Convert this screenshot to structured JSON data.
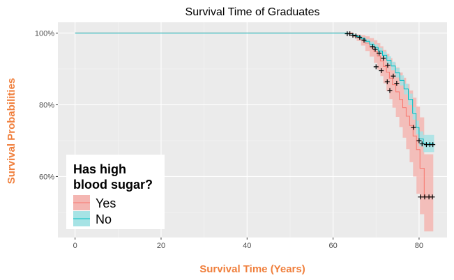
{
  "chart_data": {
    "type": "line",
    "title": "Survival Time of Graduates",
    "xlabel": "Survival Time (Years)",
    "ylabel": "Survival Probabilities",
    "xlim": [
      -4,
      86.5
    ],
    "ylim": [
      0.43,
      1.03
    ],
    "xticks": [
      0,
      20,
      40,
      60,
      80
    ],
    "xtick_labels": [
      "0",
      "20",
      "40",
      "60",
      "80"
    ],
    "yticks": [
      0.6,
      0.8,
      1.0
    ],
    "ytick_labels": [
      "60%",
      "80%",
      "100%"
    ],
    "grid": true,
    "legend": {
      "title_lines": [
        "Has high",
        "blood sugar?"
      ],
      "position": "bottom-left"
    },
    "series": [
      {
        "name": "Yes",
        "color": "#F8766D",
        "fill": "#F4B6B2",
        "steps": [
          [
            0,
            1.0
          ],
          [
            64.5,
            0.994
          ],
          [
            65.5,
            0.988
          ],
          [
            66.5,
            0.981
          ],
          [
            67.5,
            0.972
          ],
          [
            68.5,
            0.961
          ],
          [
            69.5,
            0.949
          ],
          [
            70.3,
            0.936
          ],
          [
            71,
            0.922
          ],
          [
            71.7,
            0.907
          ],
          [
            72.4,
            0.891
          ],
          [
            73.1,
            0.874
          ],
          [
            73.8,
            0.856
          ],
          [
            74.6,
            0.836
          ],
          [
            75.4,
            0.815
          ],
          [
            76.2,
            0.792
          ],
          [
            77,
            0.768
          ],
          [
            77.8,
            0.742
          ],
          [
            78.6,
            0.713
          ],
          [
            79.4,
            0.675
          ],
          [
            80.2,
            0.623
          ],
          [
            81.2,
            0.543
          ],
          [
            83.3,
            0.543
          ]
        ],
        "band_lower": [
          [
            0,
            1.0
          ],
          [
            64.5,
            0.988
          ],
          [
            65.5,
            0.978
          ],
          [
            66.5,
            0.965
          ],
          [
            67.5,
            0.95
          ],
          [
            68.5,
            0.934
          ],
          [
            69.5,
            0.917
          ],
          [
            70.3,
            0.898
          ],
          [
            71,
            0.88
          ],
          [
            71.7,
            0.86
          ],
          [
            72.4,
            0.838
          ],
          [
            73.1,
            0.816
          ],
          [
            73.8,
            0.792
          ],
          [
            74.6,
            0.766
          ],
          [
            75.4,
            0.738
          ],
          [
            76.2,
            0.708
          ],
          [
            77,
            0.676
          ],
          [
            77.8,
            0.64
          ],
          [
            78.6,
            0.6
          ],
          [
            79.4,
            0.552
          ],
          [
            80.2,
            0.495
          ],
          [
            81.2,
            0.447
          ],
          [
            83.3,
            0.447
          ]
        ],
        "band_upper": [
          [
            0,
            1.0
          ],
          [
            64.5,
            0.998
          ],
          [
            65.5,
            0.996
          ],
          [
            66.5,
            0.994
          ],
          [
            67.5,
            0.991
          ],
          [
            68.5,
            0.986
          ],
          [
            69.5,
            0.98
          ],
          [
            70.3,
            0.972
          ],
          [
            71,
            0.963
          ],
          [
            71.7,
            0.953
          ],
          [
            72.4,
            0.942
          ],
          [
            73.1,
            0.93
          ],
          [
            73.8,
            0.918
          ],
          [
            74.6,
            0.904
          ],
          [
            75.4,
            0.89
          ],
          [
            76.2,
            0.875
          ],
          [
            77,
            0.858
          ],
          [
            77.8,
            0.84
          ],
          [
            78.6,
            0.82
          ],
          [
            79.4,
            0.795
          ],
          [
            80.2,
            0.765
          ],
          [
            81.2,
            0.662
          ],
          [
            83.3,
            0.662
          ]
        ],
        "censored": [
          [
            70,
            0.906
          ],
          [
            71.2,
            0.895
          ],
          [
            72.6,
            0.864
          ],
          [
            73.2,
            0.84
          ],
          [
            80.3,
            0.543
          ],
          [
            81.3,
            0.543
          ],
          [
            82.3,
            0.543
          ],
          [
            83.1,
            0.543
          ]
        ]
      },
      {
        "name": "No",
        "color": "#00BFC4",
        "fill": "#A6E3E5",
        "steps": [
          [
            0,
            1.0
          ],
          [
            63.5,
            0.998
          ],
          [
            64.5,
            0.994
          ],
          [
            65.5,
            0.99
          ],
          [
            66.5,
            0.984
          ],
          [
            67.5,
            0.977
          ],
          [
            68.5,
            0.969
          ],
          [
            69.5,
            0.96
          ],
          [
            70.5,
            0.95
          ],
          [
            71.5,
            0.938
          ],
          [
            72.5,
            0.924
          ],
          [
            73.5,
            0.908
          ],
          [
            74.5,
            0.889
          ],
          [
            75.5,
            0.868
          ],
          [
            76.5,
            0.844
          ],
          [
            77.5,
            0.815
          ],
          [
            78.5,
            0.776
          ],
          [
            79.3,
            0.737
          ],
          [
            80,
            0.705
          ],
          [
            81,
            0.692
          ],
          [
            83.5,
            0.692
          ]
        ],
        "band_lower": [
          [
            0,
            1.0
          ],
          [
            63.5,
            0.996
          ],
          [
            64.5,
            0.991
          ],
          [
            65.5,
            0.986
          ],
          [
            66.5,
            0.979
          ],
          [
            67.5,
            0.971
          ],
          [
            68.5,
            0.962
          ],
          [
            69.5,
            0.952
          ],
          [
            70.5,
            0.941
          ],
          [
            71.5,
            0.928
          ],
          [
            72.5,
            0.913
          ],
          [
            73.5,
            0.896
          ],
          [
            74.5,
            0.876
          ],
          [
            75.5,
            0.854
          ],
          [
            76.5,
            0.829
          ],
          [
            77.5,
            0.799
          ],
          [
            78.5,
            0.759
          ],
          [
            79.3,
            0.718
          ],
          [
            80,
            0.684
          ],
          [
            81,
            0.668
          ],
          [
            83.5,
            0.668
          ]
        ],
        "band_upper": [
          [
            0,
            1.0
          ],
          [
            63.5,
            1.0
          ],
          [
            64.5,
            0.997
          ],
          [
            65.5,
            0.994
          ],
          [
            66.5,
            0.989
          ],
          [
            67.5,
            0.983
          ],
          [
            68.5,
            0.976
          ],
          [
            69.5,
            0.968
          ],
          [
            70.5,
            0.959
          ],
          [
            71.5,
            0.948
          ],
          [
            72.5,
            0.935
          ],
          [
            73.5,
            0.92
          ],
          [
            74.5,
            0.902
          ],
          [
            75.5,
            0.882
          ],
          [
            76.5,
            0.859
          ],
          [
            77.5,
            0.831
          ],
          [
            78.5,
            0.793
          ],
          [
            79.3,
            0.756
          ],
          [
            80,
            0.726
          ],
          [
            81,
            0.716
          ],
          [
            83.5,
            0.716
          ]
        ],
        "censored": [
          [
            63.3,
            0.998
          ],
          [
            63.9,
            0.998
          ],
          [
            64.6,
            0.994
          ],
          [
            65.3,
            0.992
          ],
          [
            66.2,
            0.988
          ],
          [
            67.2,
            0.98
          ],
          [
            69.2,
            0.962
          ],
          [
            69.8,
            0.955
          ],
          [
            70.7,
            0.944
          ],
          [
            71.7,
            0.93
          ],
          [
            72.7,
            0.91
          ],
          [
            74,
            0.88
          ],
          [
            74.8,
            0.86
          ],
          [
            78.7,
            0.737
          ],
          [
            80,
            0.7
          ],
          [
            80.7,
            0.691
          ],
          [
            81.7,
            0.689
          ],
          [
            82.5,
            0.689
          ],
          [
            83.2,
            0.689
          ]
        ]
      }
    ]
  }
}
